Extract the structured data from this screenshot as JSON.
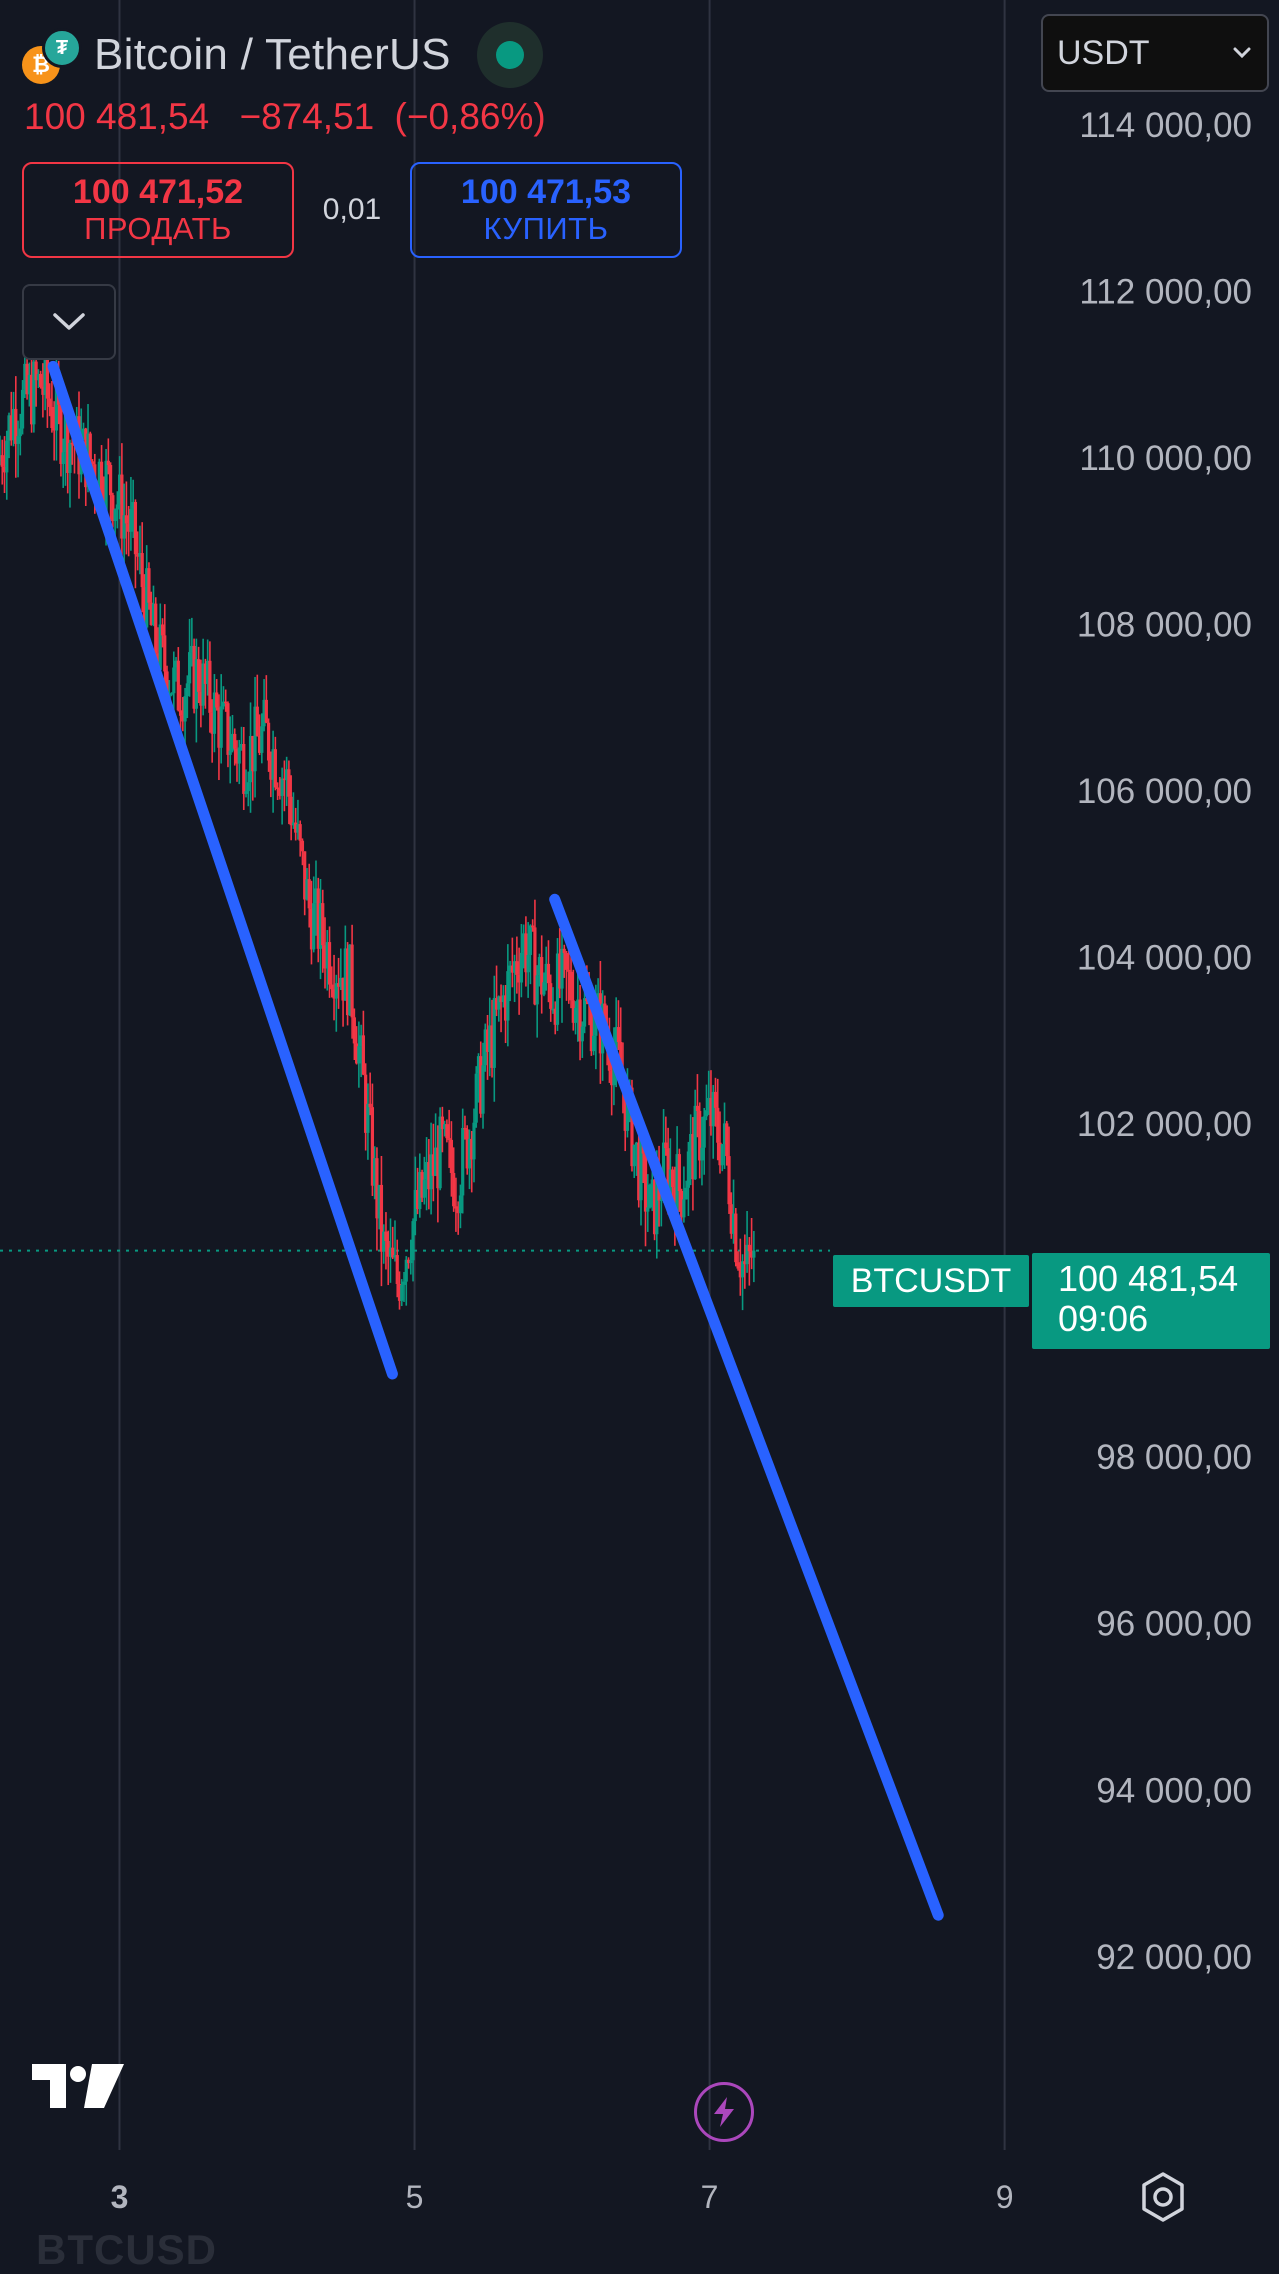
{
  "header": {
    "symbol_title": "Bitcoin / TetherUS",
    "btc_glyph": "₿",
    "usdt_glyph": "₮",
    "last_price": "100 481,54",
    "change": "−874,51",
    "change_percent": "(−0,86%)",
    "sell_price": "100 471,52",
    "sell_label": "ПРОДАТЬ",
    "spread": "0,01",
    "buy_price": "100 471,53",
    "buy_label": "КУПИТЬ",
    "currency": "USDT"
  },
  "last_price_tag": {
    "symbol": "BTCUSDT",
    "price": "100 481,54",
    "countdown": "09:06"
  },
  "watermark": "BTCUSD",
  "colors": {
    "background": "#131722",
    "up": "#089981",
    "down": "#f23645",
    "trendline": "#2962ff",
    "grid": "#2a2e39",
    "axis_text": "#b2b5be"
  },
  "icons": {
    "status": "market-open-dot-icon",
    "collapse": "chevron-down-icon",
    "logo": "tradingview-logo-icon",
    "lightning": "lightning-icon",
    "settings": "settings-icon"
  },
  "chart_data": {
    "type": "candlestick",
    "y_ticks": [
      {
        "value": 114000,
        "label": "114 000,00"
      },
      {
        "value": 112000,
        "label": "112 000,00"
      },
      {
        "value": 110000,
        "label": "110 000,00"
      },
      {
        "value": 108000,
        "label": "108 000,00"
      },
      {
        "value": 106000,
        "label": "106 000,00"
      },
      {
        "value": 104000,
        "label": "104 000,00"
      },
      {
        "value": 102000,
        "label": "102 000,00"
      },
      {
        "value": 98000,
        "label": "98 000,00"
      },
      {
        "value": 96000,
        "label": "96 000,00"
      },
      {
        "value": 94000,
        "label": "94 000,00"
      },
      {
        "value": 92000,
        "label": "92 000,00"
      }
    ],
    "x_ticks": [
      {
        "value": 3,
        "label": "3"
      },
      {
        "value": 5,
        "label": "5"
      },
      {
        "value": 7,
        "label": "7"
      },
      {
        "value": 9,
        "label": "9"
      }
    ],
    "ylim": [
      89800,
      115500
    ],
    "xlim": [
      2.19,
      10.86
    ],
    "last_price": 100481.54,
    "price_path": [
      [
        2.19,
        109960
      ],
      [
        2.3,
        110550
      ],
      [
        2.48,
        110900
      ],
      [
        2.62,
        110350
      ],
      [
        2.8,
        110000
      ],
      [
        2.95,
        109700
      ],
      [
        3.1,
        109100
      ],
      [
        3.25,
        107800
      ],
      [
        3.4,
        107200
      ],
      [
        3.55,
        107400
      ],
      [
        3.7,
        106800
      ],
      [
        3.85,
        106400
      ],
      [
        4.0,
        106700
      ],
      [
        4.15,
        106100
      ],
      [
        4.3,
        104600
      ],
      [
        4.45,
        104000
      ],
      [
        4.58,
        103700
      ],
      [
        4.7,
        102000
      ],
      [
        4.8,
        100500
      ],
      [
        4.9,
        100100
      ],
      [
        5.0,
        100800
      ],
      [
        5.1,
        101300
      ],
      [
        5.2,
        101700
      ],
      [
        5.3,
        101300
      ],
      [
        5.4,
        102000
      ],
      [
        5.5,
        102800
      ],
      [
        5.62,
        103500
      ],
      [
        5.75,
        104200
      ],
      [
        5.85,
        103800
      ],
      [
        5.95,
        103600
      ],
      [
        6.05,
        103700
      ],
      [
        6.15,
        103400
      ],
      [
        6.28,
        103200
      ],
      [
        6.4,
        102700
      ],
      [
        6.52,
        101600
      ],
      [
        6.62,
        100900
      ],
      [
        6.72,
        101500
      ],
      [
        6.82,
        101200
      ],
      [
        6.92,
        101800
      ],
      [
        7.02,
        102100
      ],
      [
        7.12,
        101700
      ],
      [
        7.2,
        100600
      ],
      [
        7.26,
        100200
      ],
      [
        7.31,
        100480
      ]
    ],
    "trendlines": [
      {
        "x1": 2.55,
        "y1": 111100,
        "x2": 4.85,
        "y2": 99000
      },
      {
        "x1": 5.95,
        "y1": 104700,
        "x2": 8.55,
        "y2": 92500
      }
    ]
  }
}
